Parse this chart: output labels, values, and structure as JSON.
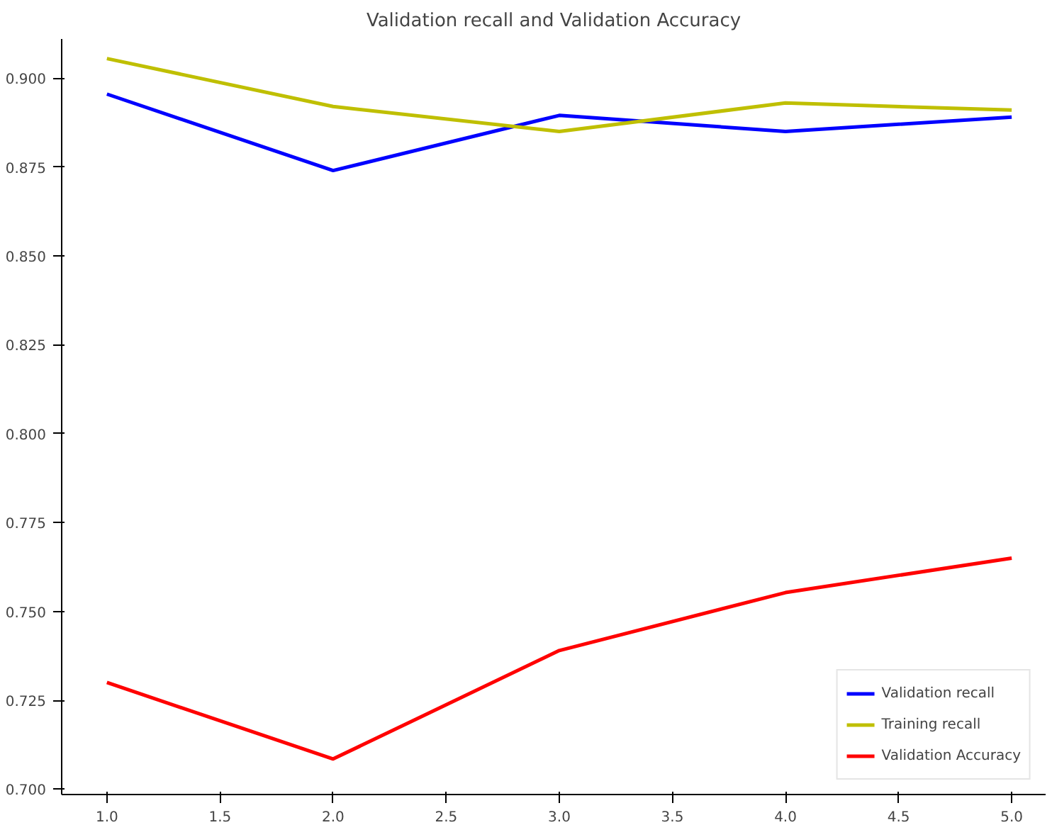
{
  "chart_data": {
    "type": "line",
    "title": "Validation recall and Validation Accuracy",
    "x": [
      1,
      2,
      3,
      4,
      5
    ],
    "series": [
      {
        "name": "Validation recall",
        "color": "#0000ff",
        "values": [
          0.8955,
          0.874,
          0.8895,
          0.885,
          0.889
        ]
      },
      {
        "name": "Training recall",
        "color": "#bfbf00",
        "values": [
          0.9055,
          0.892,
          0.885,
          0.893,
          0.891
        ]
      },
      {
        "name": "Validation Accuracy",
        "color": "#ff0000",
        "values": [
          0.73,
          0.7085,
          0.739,
          0.7553,
          0.765
        ]
      }
    ],
    "xlim": [
      0.8,
      5.15
    ],
    "ylim": [
      0.6985,
      0.911
    ],
    "xticks": [
      {
        "value": 1,
        "label": "1.0"
      },
      {
        "value": 1.5,
        "label": "1.5"
      },
      {
        "value": 2,
        "label": "2.0"
      },
      {
        "value": 2.5,
        "label": "2.5"
      },
      {
        "value": 3,
        "label": "3.0"
      },
      {
        "value": 3.5,
        "label": "3.5"
      },
      {
        "value": 4,
        "label": "4.0"
      },
      {
        "value": 4.5,
        "label": "4.5"
      },
      {
        "value": 5,
        "label": "5.0"
      }
    ],
    "yticks": [
      {
        "value": 0.7,
        "label": "0.700"
      },
      {
        "value": 0.725,
        "label": "0.725"
      },
      {
        "value": 0.75,
        "label": "0.750"
      },
      {
        "value": 0.775,
        "label": "0.775"
      },
      {
        "value": 0.8,
        "label": "0.800"
      },
      {
        "value": 0.825,
        "label": "0.825"
      },
      {
        "value": 0.85,
        "label": "0.850"
      },
      {
        "value": 0.875,
        "label": "0.875"
      },
      {
        "value": 0.9,
        "label": "0.900"
      }
    ],
    "grid": false,
    "legend": "bottom right"
  }
}
